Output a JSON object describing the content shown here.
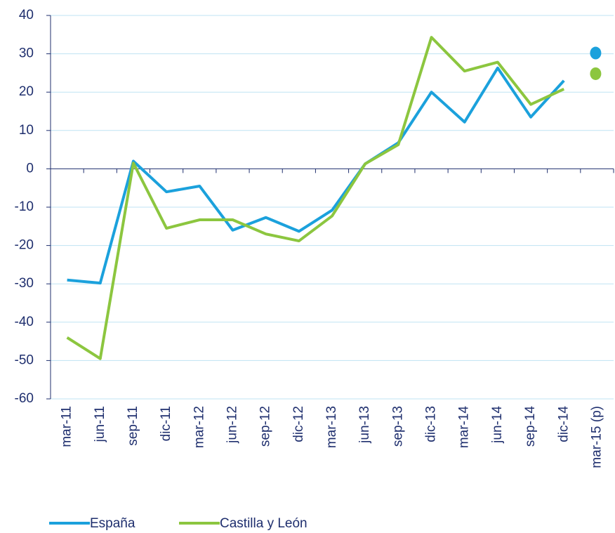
{
  "chart_data": {
    "type": "line",
    "categories": [
      "mar-11",
      "jun-11",
      "sep-11",
      "dic-11",
      "mar-12",
      "jun-12",
      "sep-12",
      "dic-12",
      "mar-13",
      "jun-13",
      "sep-13",
      "dic-13",
      "mar-14",
      "jun-14",
      "sep-14",
      "dic-14",
      "mar-15 (p)"
    ],
    "series": [
      {
        "name": "España",
        "color": "#1ba1dc",
        "values": [
          -29,
          -29.8,
          2,
          -6,
          -4.5,
          -16,
          -12.7,
          -16.3,
          -10.8,
          1.3,
          6.8,
          20,
          12.2,
          26.3,
          13.5,
          23,
          null
        ],
        "forecast": 30.2
      },
      {
        "name": "Castilla y León",
        "color": "#8cc63f",
        "values": [
          -44,
          -49.5,
          1.5,
          -15.5,
          -13.3,
          -13.3,
          -17,
          -18.8,
          -12.3,
          1.3,
          6.3,
          34.3,
          25.5,
          27.8,
          16.8,
          20.8,
          null
        ],
        "forecast": 24.8
      }
    ],
    "ylim": [
      -60,
      40
    ],
    "yticks": [
      -60,
      -50,
      -40,
      -30,
      -20,
      -10,
      0,
      10,
      20,
      30,
      40
    ],
    "grid": true,
    "legend": "bottom"
  }
}
